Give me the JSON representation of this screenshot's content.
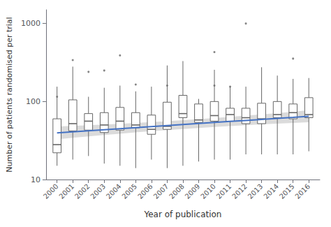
{
  "chart_data": {
    "type": "box",
    "xlabel": "Year of publication",
    "ylabel": "Number of patients randomised per trial",
    "log": "y",
    "grid": false,
    "x": [
      2000,
      2001,
      2002,
      2003,
      2004,
      2005,
      2006,
      2007,
      2008,
      2009,
      2010,
      2011,
      2012,
      2013,
      2014,
      2015,
      2016
    ],
    "xlim": [
      1999.3,
      2016.7
    ],
    "xticks": [
      2000,
      2001,
      2002,
      2003,
      2004,
      2005,
      2006,
      2007,
      2008,
      2009,
      2010,
      2011,
      2012,
      2013,
      2014,
      2015,
      2016
    ],
    "ylim": [
      10,
      1500
    ],
    "yticks": [
      10,
      100,
      1000
    ],
    "series": [
      {
        "type": "band",
        "color": "#cccccc",
        "lower": [
          32.79,
          34.26,
          35.74,
          37.22,
          38.69,
          40.16,
          41.62,
          43.06,
          44.47,
          45.85,
          47.2,
          48.51,
          49.77,
          50.97,
          52.12,
          53.21,
          54.23
        ],
        "upper": [
          47.94,
          48.78,
          49.72,
          50.75,
          51.9,
          53.16,
          54.54,
          56.05,
          57.7,
          59.49,
          61.44,
          63.57,
          65.87,
          68.37,
          71.08,
          74.03,
          77.22
        ]
      },
      {
        "type": "box",
        "color": "#666666",
        "boxes": [
          {
            "whislo": 15,
            "q1": 22,
            "med": 28,
            "q3": 60,
            "whishi": 155,
            "fliers": [
              115
            ]
          },
          {
            "whislo": 18,
            "q1": 42,
            "med": 52,
            "q3": 105,
            "whishi": 280,
            "fliers": [
              340
            ]
          },
          {
            "whislo": 20,
            "q1": 43,
            "med": 56,
            "q3": 70,
            "whishi": 115,
            "fliers": [
              240
            ]
          },
          {
            "whislo": 16,
            "q1": 40,
            "med": 50,
            "q3": 72,
            "whishi": 150,
            "fliers": [
              250
            ]
          },
          {
            "whislo": 15,
            "q1": 43,
            "med": 56,
            "q3": 84,
            "whishi": 160,
            "fliers": [
              390
            ]
          },
          {
            "whislo": 14,
            "q1": 46,
            "med": 50,
            "q3": 72,
            "whishi": 135,
            "fliers": [
              165
            ]
          },
          {
            "whislo": 18,
            "q1": 38,
            "med": 44,
            "q3": 67,
            "whishi": 155,
            "fliers": []
          },
          {
            "whislo": 14,
            "q1": 44,
            "med": 48,
            "q3": 98,
            "whishi": 290,
            "fliers": [
              160
            ]
          },
          {
            "whislo": 15,
            "q1": 62,
            "med": 70,
            "q3": 120,
            "whishi": 330,
            "fliers": []
          },
          {
            "whislo": 17,
            "q1": 54,
            "med": 58,
            "q3": 93,
            "whishi": 108,
            "fliers": []
          },
          {
            "whislo": 18,
            "q1": 56,
            "med": 66,
            "q3": 100,
            "whishi": 255,
            "fliers": [
              430,
              160
            ]
          },
          {
            "whislo": 18,
            "q1": 56,
            "med": 68,
            "q3": 82,
            "whishi": 155,
            "fliers": [
              155
            ]
          },
          {
            "whislo": 21,
            "q1": 52,
            "med": 62,
            "q3": 82,
            "whishi": 155,
            "fliers": [
              1000
            ]
          },
          {
            "whislo": 21,
            "q1": 52,
            "med": 60,
            "q3": 95,
            "whishi": 275,
            "fliers": []
          },
          {
            "whislo": 21,
            "q1": 62,
            "med": 68,
            "q3": 100,
            "whishi": 215,
            "fliers": []
          },
          {
            "whislo": 21,
            "q1": 60,
            "med": 72,
            "q3": 93,
            "whishi": 195,
            "fliers": [
              355
            ]
          },
          {
            "whislo": 23,
            "q1": 62,
            "med": 68,
            "q3": 112,
            "whishi": 200,
            "fliers": []
          }
        ]
      },
      {
        "type": "line",
        "color": "#4472c4",
        "values": [
          39.65,
          40.88,
          42.15,
          43.46,
          44.81,
          46.21,
          47.64,
          49.13,
          50.65,
          52.23,
          53.85,
          55.53,
          57.25,
          59.03,
          60.87,
          62.76,
          64.72
        ]
      }
    ]
  }
}
